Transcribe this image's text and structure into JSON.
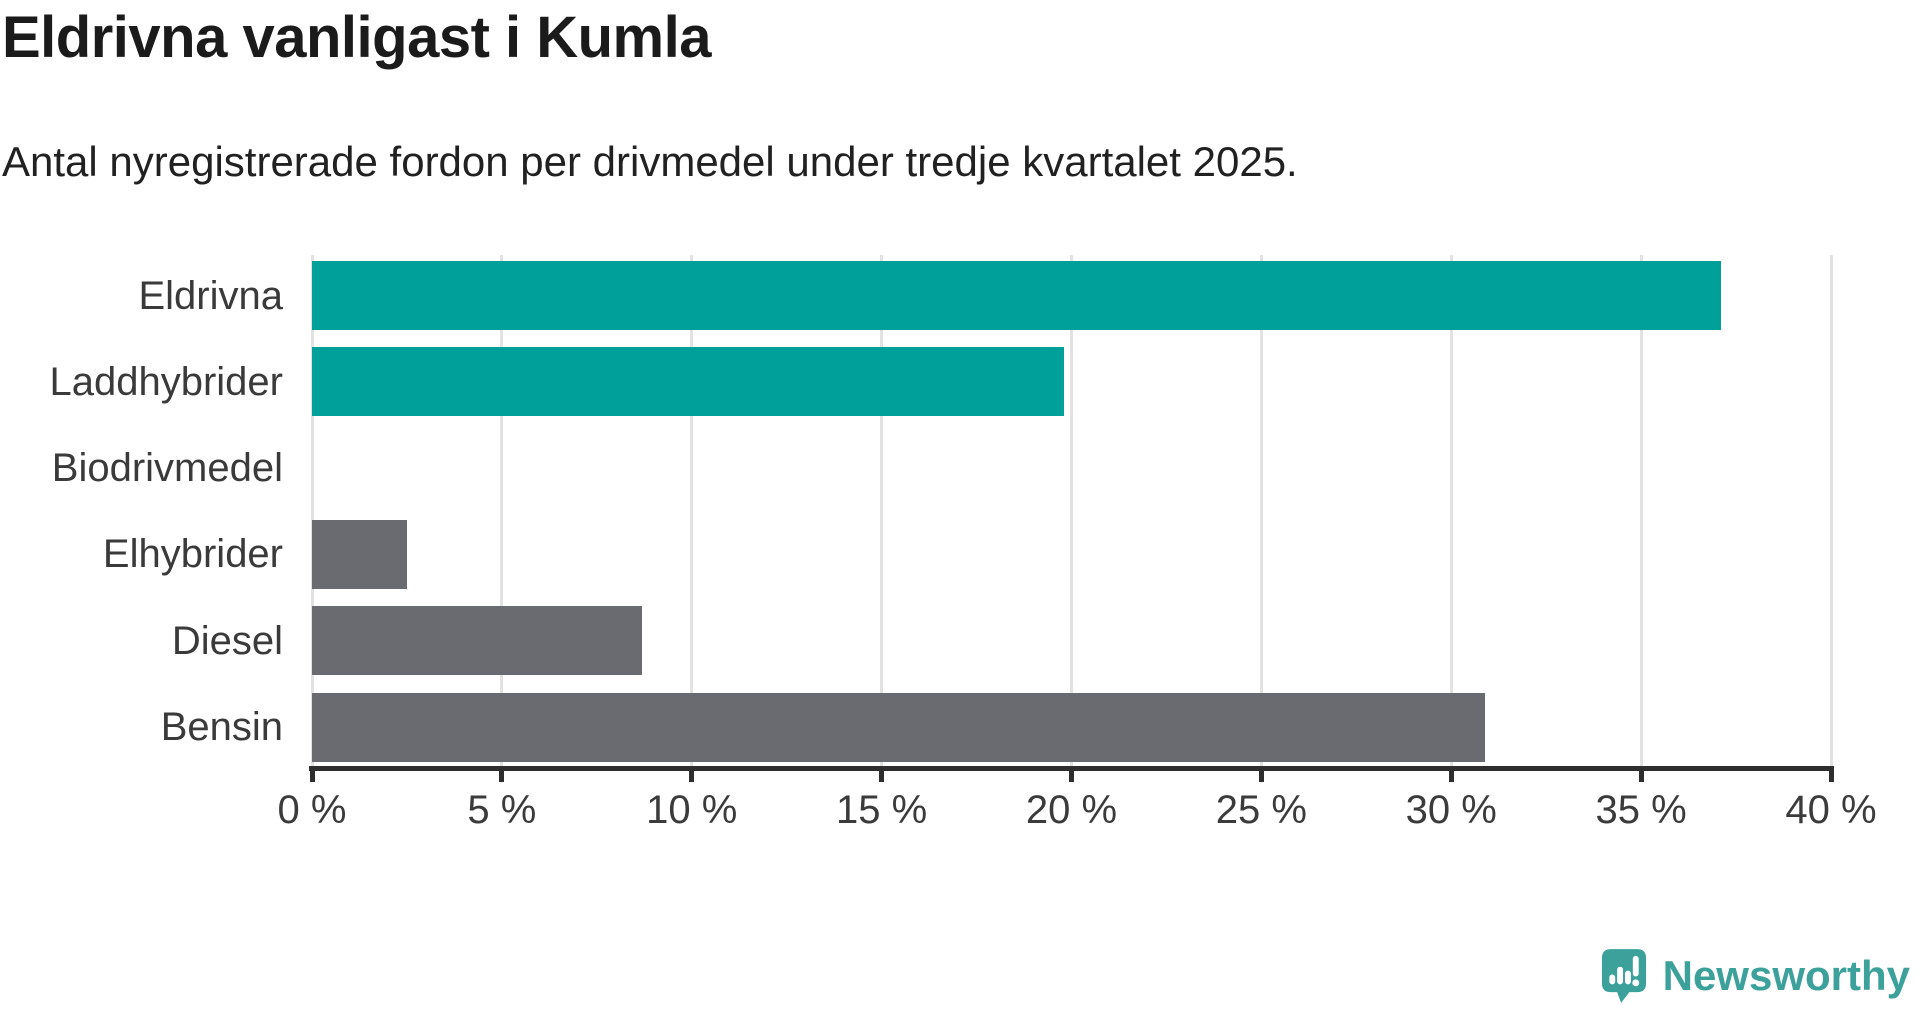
{
  "header": {
    "title": "Eldrivna vanligast i Kumla",
    "subtitle": "Antal nyregistrerade fordon per drivmedel under tredje kvartalet 2025."
  },
  "chart_data": {
    "type": "bar",
    "orientation": "horizontal",
    "title": "Eldrivna vanligast i Kumla",
    "subtitle": "Antal nyregistrerade fordon per drivmedel under tredje kvartalet 2025.",
    "categories": [
      "Eldrivna",
      "Laddhybrider",
      "Biodrivmedel",
      "Elhybrider",
      "Diesel",
      "Bensin"
    ],
    "values": [
      37.1,
      19.8,
      0,
      2.5,
      8.7,
      30.9
    ],
    "unit": "%",
    "bar_colors": [
      "#00A09A",
      "#00A09A",
      "#6A6A71",
      "#6A6A71",
      "#6A6A71",
      "#6A6A71"
    ],
    "xlim": [
      0,
      40
    ],
    "x_ticks": [
      0,
      5,
      10,
      15,
      20,
      25,
      30,
      35,
      40
    ],
    "x_tick_labels": [
      "0 %",
      "5 %",
      "10 %",
      "15 %",
      "20 %",
      "25 %",
      "30 %",
      "35 %",
      "40 %"
    ],
    "grid": true,
    "legend": false
  },
  "footer": {
    "brand": "Newsworthy"
  },
  "colors": {
    "accent_teal": "#00A09A",
    "neutral_gray": "#6A6A71",
    "gridline": "#E2E2E2",
    "axis": "#2E2E2E",
    "title_text": "#1B1B1B",
    "label_text": "#3A3A3A",
    "brand_teal": "#3CA19B"
  }
}
